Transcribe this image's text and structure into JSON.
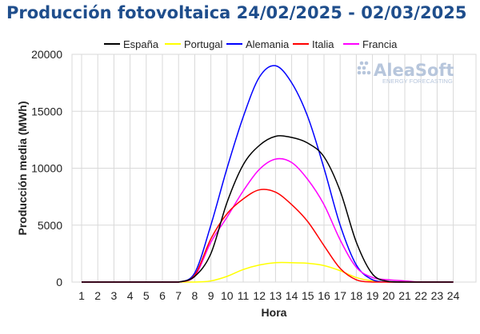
{
  "title": "Producción fotovoltaica 24/02/2025 - 02/03/2025",
  "logo": {
    "name": "AleaSoft",
    "tagline": "ENERGY FORECASTING"
  },
  "colors": {
    "title": "#1f4e8c",
    "grid": "#d9d9d9",
    "logo": "#b7c6dc"
  },
  "chart_data": {
    "type": "line",
    "title": "Producción fotovoltaica 24/02/2025 - 02/03/2025",
    "xlabel": "Hora",
    "ylabel": "Producción media (MWh)",
    "x": [
      1,
      2,
      3,
      4,
      5,
      6,
      7,
      8,
      9,
      10,
      11,
      12,
      13,
      14,
      15,
      16,
      17,
      18,
      19,
      20,
      21,
      22,
      23,
      24
    ],
    "ylim": [
      0,
      20000
    ],
    "yticks": [
      0,
      5000,
      10000,
      15000,
      20000
    ],
    "ytick_labels": [
      "0",
      "5000",
      "10000",
      "15000",
      "20000"
    ],
    "grid": true,
    "legend": "top",
    "series": [
      {
        "name": "España",
        "color": "#000000",
        "values": [
          0,
          0,
          0,
          0,
          0,
          0,
          0,
          500,
          2500,
          7000,
          10300,
          12000,
          12800,
          12700,
          12200,
          11000,
          8000,
          3500,
          700,
          50,
          0,
          0,
          0,
          0
        ]
      },
      {
        "name": "Portugal",
        "color": "#ffff00",
        "values": [
          0,
          0,
          0,
          0,
          0,
          0,
          0,
          0,
          100,
          500,
          1100,
          1500,
          1700,
          1700,
          1650,
          1450,
          1000,
          400,
          100,
          0,
          0,
          0,
          0,
          0
        ]
      },
      {
        "name": "Alemania",
        "color": "#0000ff",
        "values": [
          0,
          0,
          0,
          0,
          0,
          0,
          0,
          800,
          5000,
          10000,
          14500,
          18000,
          19000,
          17500,
          14500,
          10000,
          5000,
          1500,
          200,
          0,
          0,
          0,
          0,
          0
        ]
      },
      {
        "name": "Italia",
        "color": "#ff0000",
        "values": [
          0,
          0,
          0,
          0,
          0,
          0,
          0,
          600,
          3800,
          6000,
          7300,
          8100,
          7900,
          6800,
          5300,
          3200,
          1200,
          200,
          0,
          0,
          0,
          0,
          0,
          0
        ]
      },
      {
        "name": "Francia",
        "color": "#ff00ff",
        "values": [
          0,
          0,
          0,
          0,
          0,
          0,
          0,
          500,
          3500,
          5700,
          8000,
          9900,
          10800,
          10500,
          9000,
          6800,
          3700,
          1300,
          400,
          200,
          100,
          0,
          0,
          0
        ]
      }
    ]
  }
}
